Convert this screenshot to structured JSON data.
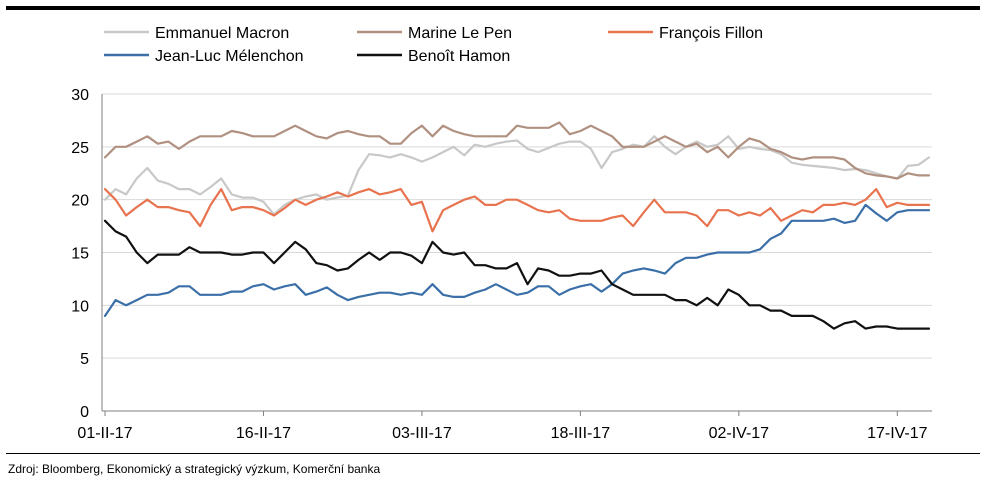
{
  "source": "Zdroj: Bloomberg, Ekonomický a strategický výzkum, Komerční banka",
  "chart_data": {
    "type": "line",
    "title": "",
    "xlabel": "",
    "ylabel": "",
    "ylim": [
      0,
      30
    ],
    "yticks": [
      0,
      5,
      10,
      15,
      20,
      25,
      30
    ],
    "xtick_labels": [
      "01-II-17",
      "16-II-17",
      "03-III-17",
      "18-III-17",
      "02-IV-17",
      "17-IV-17"
    ],
    "xtick_index": [
      0,
      15,
      30,
      45,
      60,
      75
    ],
    "grid": "horizontal",
    "legend": "top",
    "series": [
      {
        "name": "Emmanuel Macron",
        "color": "#c8c8c8",
        "values": [
          20.0,
          21.0,
          20.5,
          22.0,
          23.0,
          21.8,
          21.5,
          21.0,
          21.0,
          20.5,
          21.2,
          22.0,
          20.5,
          20.2,
          20.2,
          19.8,
          18.6,
          19.5,
          20.0,
          20.3,
          20.5,
          20.0,
          20.2,
          20.4,
          22.8,
          24.3,
          24.2,
          24.0,
          24.3,
          24.0,
          23.6,
          24.0,
          24.5,
          25.0,
          24.2,
          25.2,
          25.0,
          25.3,
          25.5,
          25.6,
          24.8,
          24.5,
          24.9,
          25.3,
          25.5,
          25.5,
          24.8,
          23.0,
          24.5,
          24.8,
          25.2,
          25.0,
          26.0,
          25.0,
          24.3,
          25.0,
          25.5,
          25.0,
          25.2,
          26.0,
          24.8,
          25.0,
          24.8,
          24.7,
          24.3,
          23.5,
          23.3,
          23.2,
          23.1,
          23.0,
          22.8,
          22.9,
          22.8,
          22.5,
          22.2,
          22.0,
          23.2,
          23.3,
          24.0
        ]
      },
      {
        "name": "Marine Le Pen",
        "color": "#b09080",
        "values": [
          24.0,
          25.0,
          25.0,
          25.5,
          26.0,
          25.3,
          25.5,
          24.8,
          25.5,
          26.0,
          26.0,
          26.0,
          26.5,
          26.3,
          26.0,
          26.0,
          26.0,
          26.5,
          27.0,
          26.5,
          26.0,
          25.8,
          26.3,
          26.5,
          26.2,
          26.0,
          26.0,
          25.3,
          25.3,
          26.3,
          27.0,
          26.0,
          27.0,
          26.5,
          26.2,
          26.0,
          26.0,
          26.0,
          26.0,
          27.0,
          26.8,
          26.8,
          26.8,
          27.3,
          26.2,
          26.5,
          27.0,
          26.5,
          26.0,
          25.0,
          25.0,
          25.0,
          25.5,
          26.0,
          25.5,
          25.0,
          25.3,
          24.5,
          25.0,
          24.0,
          25.0,
          25.8,
          25.5,
          24.8,
          24.5,
          24.0,
          23.8,
          24.0,
          24.0,
          24.0,
          23.8,
          23.0,
          22.5,
          22.3,
          22.2,
          22.0,
          22.5,
          22.3,
          22.3
        ]
      },
      {
        "name": "François Fillon",
        "color": "#e8734f",
        "values": [
          21.0,
          20.0,
          18.5,
          19.3,
          20.0,
          19.3,
          19.3,
          19.0,
          18.8,
          17.5,
          19.5,
          21.0,
          19.0,
          19.3,
          19.3,
          19.0,
          18.5,
          19.2,
          20.0,
          19.5,
          20.0,
          20.3,
          20.7,
          20.3,
          20.7,
          21.0,
          20.5,
          20.7,
          21.0,
          19.5,
          19.8,
          17.0,
          19.0,
          19.5,
          20.0,
          20.3,
          19.5,
          19.5,
          20.0,
          20.0,
          19.5,
          19.0,
          18.8,
          19.0,
          18.2,
          18.0,
          18.0,
          18.0,
          18.3,
          18.5,
          17.5,
          18.8,
          20.0,
          18.8,
          18.8,
          18.8,
          18.5,
          17.5,
          19.0,
          19.0,
          18.5,
          18.8,
          18.5,
          19.2,
          18.0,
          18.5,
          19.0,
          18.8,
          19.5,
          19.5,
          19.7,
          19.5,
          20.0,
          21.0,
          19.3,
          19.7,
          19.5,
          19.5,
          19.5
        ]
      },
      {
        "name": "Jean-Luc Mélenchon",
        "color": "#3a6fa8",
        "values": [
          9.0,
          10.5,
          10.0,
          10.5,
          11.0,
          11.0,
          11.2,
          11.8,
          11.8,
          11.0,
          11.0,
          11.0,
          11.3,
          11.3,
          11.8,
          12.0,
          11.5,
          11.8,
          12.0,
          11.0,
          11.3,
          11.7,
          11.0,
          10.5,
          10.8,
          11.0,
          11.2,
          11.2,
          11.0,
          11.2,
          11.0,
          12.0,
          11.0,
          10.8,
          10.8,
          11.2,
          11.5,
          12.0,
          11.5,
          11.0,
          11.2,
          11.8,
          11.8,
          11.0,
          11.5,
          11.8,
          12.0,
          11.3,
          12.0,
          13.0,
          13.3,
          13.5,
          13.3,
          13.0,
          14.0,
          14.5,
          14.5,
          14.8,
          15.0,
          15.0,
          15.0,
          15.0,
          15.3,
          16.3,
          16.8,
          18.0,
          18.0,
          18.0,
          18.0,
          18.2,
          17.8,
          18.0,
          19.5,
          18.7,
          18.0,
          18.8,
          19.0,
          19.0,
          19.0
        ]
      },
      {
        "name": "Benoît Hamon",
        "color": "#111111",
        "values": [
          18.0,
          17.0,
          16.5,
          15.0,
          14.0,
          14.8,
          14.8,
          14.8,
          15.5,
          15.0,
          15.0,
          15.0,
          14.8,
          14.8,
          15.0,
          15.0,
          14.0,
          15.0,
          16.0,
          15.3,
          14.0,
          13.8,
          13.3,
          13.5,
          14.3,
          15.0,
          14.3,
          15.0,
          15.0,
          14.7,
          14.0,
          16.0,
          15.0,
          14.8,
          15.0,
          13.8,
          13.8,
          13.5,
          13.5,
          14.0,
          12.0,
          13.5,
          13.3,
          12.8,
          12.8,
          13.0,
          13.0,
          13.3,
          12.0,
          11.5,
          11.0,
          11.0,
          11.0,
          11.0,
          10.5,
          10.5,
          10.0,
          10.7,
          10.0,
          11.5,
          11.0,
          10.0,
          10.0,
          9.5,
          9.5,
          9.0,
          9.0,
          9.0,
          8.5,
          7.8,
          8.3,
          8.5,
          7.8,
          8.0,
          8.0,
          7.8,
          7.8,
          7.8,
          7.8
        ]
      }
    ]
  }
}
